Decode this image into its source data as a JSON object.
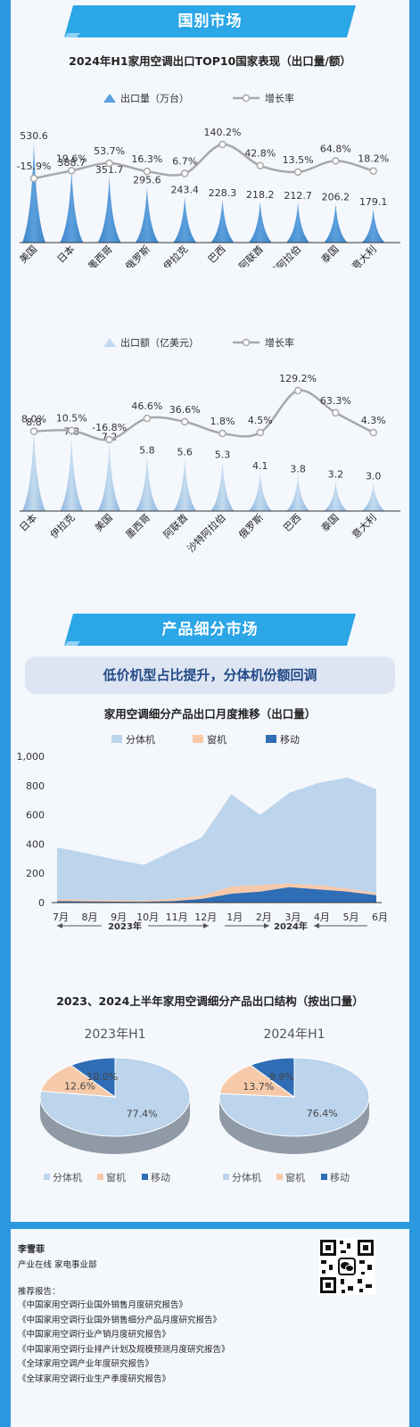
{
  "sections": {
    "country_banner": "国别市场",
    "product_banner": "产品细分市场",
    "product_subtitle": "低价机型占比提升，分体机份额回调"
  },
  "colors": {
    "page_bg": "#2a97df",
    "panel_bg": "#f4f7fc",
    "banner": "#2ba6e6",
    "bar_dark": "#3a84c9",
    "bar_light": "#a9c8e6",
    "split": "#bcd4ec",
    "window": "#f6c9a9",
    "portable": "#2f6db5",
    "growth_line": "#a8a8a8"
  },
  "chart_data": [
    {
      "type": "bar",
      "title": "2024年H1家用空调出口TOP10国家表现（出口量/额）",
      "categories": [
        "美国",
        "日本",
        "墨西哥",
        "俄罗斯",
        "伊拉克",
        "巴西",
        "阿联酋",
        "沙特阿拉伯",
        "泰国",
        "意大利"
      ],
      "series": [
        {
          "name": "出口量（万台）",
          "values": [
            530.6,
            388.7,
            351.7,
            295.6,
            243.4,
            228.3,
            218.2,
            212.7,
            206.2,
            179.1
          ],
          "value_labels": [
            "530.6",
            "388.7",
            "351.7",
            "295.6",
            "243.4",
            "228.3",
            "218.2",
            "212.7",
            "206.2",
            "179.1"
          ]
        },
        {
          "name": "增长率",
          "values": [
            -15.9,
            19.6,
            53.7,
            16.3,
            6.7,
            140.2,
            42.8,
            13.5,
            64.8,
            18.2
          ],
          "value_labels": [
            "-15.9%",
            "19.6%",
            "53.7%",
            "16.3%",
            "6.7%",
            "140.2%",
            "42.8%",
            "13.5%",
            "64.8%",
            "18.2%"
          ]
        }
      ],
      "legend": "top"
    },
    {
      "type": "bar",
      "categories": [
        "日本",
        "伊拉克",
        "美国",
        "墨西哥",
        "阿联酋",
        "沙特阿拉伯",
        "俄罗斯",
        "巴西",
        "泰国",
        "意大利"
      ],
      "series": [
        {
          "name": "出口额（亿美元）",
          "values": [
            8.8,
            7.8,
            7.2,
            5.8,
            5.6,
            5.3,
            4.1,
            3.8,
            3.2,
            3.0
          ],
          "value_labels": [
            "8.8",
            "7.8",
            "7.2",
            "5.8",
            "5.6",
            "5.3",
            "4.1",
            "3.8",
            "3.2",
            "3.0"
          ]
        },
        {
          "name": "增长率",
          "values": [
            8.0,
            10.5,
            -16.8,
            46.6,
            36.6,
            1.8,
            4.5,
            129.2,
            63.3,
            4.3
          ],
          "value_labels": [
            "8.0%",
            "10.5%",
            "-16.8%",
            "46.6%",
            "36.6%",
            "1.8%",
            "4.5%",
            "129.2%",
            "63.3%",
            "4.3%"
          ]
        }
      ],
      "legend": "top"
    },
    {
      "type": "area",
      "title": "家用空调细分产品出口月度推移（出口量）",
      "categories": [
        "7月",
        "8月",
        "9月",
        "10月",
        "11月",
        "12月",
        "1月",
        "2月",
        "3月",
        "4月",
        "5月",
        "6月"
      ],
      "year_labels": [
        "2023年",
        "2024年"
      ],
      "series": [
        {
          "name": "分体机",
          "values": [
            355,
            320,
            280,
            245,
            330,
            400,
            630,
            480,
            620,
            700,
            760,
            710
          ]
        },
        {
          "name": "窗机",
          "values": [
            12,
            10,
            8,
            8,
            15,
            22,
            50,
            45,
            25,
            28,
            20,
            15
          ]
        },
        {
          "name": "移动",
          "values": [
            10,
            8,
            6,
            5,
            10,
            25,
            60,
            75,
            105,
            90,
            75,
            50
          ]
        }
      ],
      "yticks": [
        "1,000",
        "800",
        "600",
        "400",
        "200",
        "0"
      ],
      "ylim": [
        0,
        1000
      ],
      "legend": "top",
      "grid": false
    },
    {
      "type": "pie",
      "title": "2023、2024上半年家用空调细分产品出口结构（按出口量）",
      "charts": [
        {
          "label": "2023年H1",
          "slices": [
            {
              "name": "分体机",
              "value": 77.4,
              "label": "77.4%"
            },
            {
              "name": "窗机",
              "value": 12.6,
              "label": "12.6%"
            },
            {
              "name": "移动",
              "value": 10.0,
              "label": "10.0%"
            }
          ]
        },
        {
          "label": "2024年H1",
          "slices": [
            {
              "name": "分体机",
              "value": 76.4,
              "label": "76.4%"
            },
            {
              "name": "窗机",
              "value": 13.7,
              "label": "13.7%"
            },
            {
              "name": "移动",
              "value": 9.9,
              "label": "9.9%"
            }
          ]
        }
      ],
      "legend_items": [
        "分体机",
        "窗机",
        "移动"
      ],
      "legend": "bottom"
    }
  ],
  "footer": {
    "author": "李雪菲",
    "dept": "产业在线 家电事业部",
    "rec_label": "推荐报告：",
    "reports": [
      "《中国家用空调行业国外销售月度研究报告》",
      "《中国家用空调行业国外销售细分产品月度研究报告》",
      "《中国家用空调行业产销月度研究报告》",
      "《中国家用空调行业排产计划及规模预测月度研究报告》",
      "《全球家用空调产业年度研究报告》",
      "《全球家用空调行业生产季度研究报告》"
    ],
    "qr_icon": "qr-code-icon"
  }
}
